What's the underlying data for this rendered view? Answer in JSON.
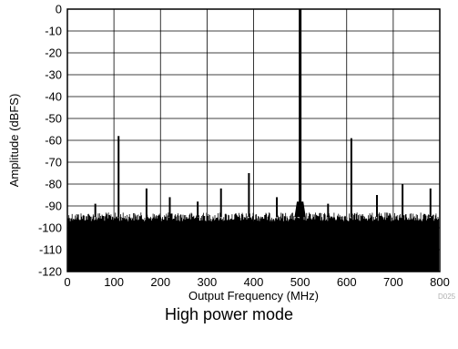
{
  "caption": "High power mode",
  "figure_code": "D025",
  "chart_data": {
    "type": "line",
    "title": "",
    "xlabel": "Output Frequency (MHz)",
    "ylabel": "Amplitude (dBFS)",
    "xlim": [
      0,
      800
    ],
    "ylim": [
      -120,
      0
    ],
    "xticks": [
      0,
      100,
      200,
      300,
      400,
      500,
      600,
      700,
      800
    ],
    "yticks": [
      0,
      -10,
      -20,
      -30,
      -40,
      -50,
      -60,
      -70,
      -80,
      -90,
      -100,
      -110,
      -120
    ],
    "grid": true,
    "noise_floor_range": [
      -120,
      -95
    ],
    "spurs": [
      {
        "x": 500,
        "y": 0
      },
      {
        "x": 110,
        "y": -58
      },
      {
        "x": 610,
        "y": -59
      },
      {
        "x": 390,
        "y": -75
      },
      {
        "x": 720,
        "y": -80
      },
      {
        "x": 170,
        "y": -82
      },
      {
        "x": 330,
        "y": -82
      },
      {
        "x": 780,
        "y": -82
      },
      {
        "x": 665,
        "y": -85
      },
      {
        "x": 220,
        "y": -86
      },
      {
        "x": 450,
        "y": -86
      },
      {
        "x": 280,
        "y": -88
      },
      {
        "x": 60,
        "y": -89
      },
      {
        "x": 560,
        "y": -89
      }
    ],
    "colors": {
      "trace": "#000000",
      "grid": "#000000"
    }
  }
}
